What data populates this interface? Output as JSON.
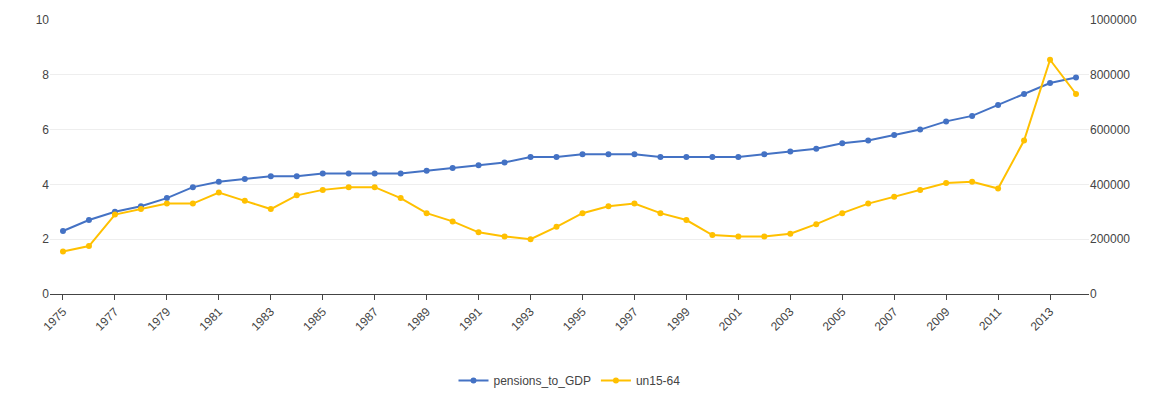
{
  "chart_data": {
    "type": "line",
    "x": [
      1975,
      1976,
      1977,
      1978,
      1979,
      1980,
      1981,
      1982,
      1983,
      1984,
      1985,
      1986,
      1987,
      1988,
      1989,
      1990,
      1991,
      1992,
      1993,
      1994,
      1995,
      1996,
      1997,
      1998,
      1999,
      2000,
      2001,
      2002,
      2003,
      2004,
      2005,
      2006,
      2007,
      2008,
      2009,
      2010,
      2011,
      2012,
      2013,
      2014
    ],
    "series": [
      {
        "name": "pensions_to_GDP",
        "color": "#4472C4",
        "marker": "circle",
        "values": [
          2.3,
          2.7,
          3.0,
          3.2,
          3.5,
          3.9,
          4.1,
          4.2,
          4.3,
          4.3,
          4.4,
          4.4,
          4.4,
          4.4,
          4.5,
          4.6,
          4.7,
          4.8,
          5.0,
          5.0,
          5.1,
          5.1,
          5.1,
          5.0,
          5.0,
          5.0,
          5.0,
          5.1,
          5.2,
          5.3,
          5.5,
          5.6,
          5.8,
          6.0,
          6.3,
          6.5,
          6.9,
          7.3,
          7.7,
          7.9
        ]
      },
      {
        "name": "un15-64",
        "color": "#FFC000",
        "marker": "circle",
        "axis": "y2",
        "values": [
          155000,
          175000,
          290000,
          310000,
          330000,
          330000,
          370000,
          340000,
          310000,
          360000,
          380000,
          390000,
          390000,
          350000,
          295000,
          265000,
          225000,
          210000,
          200000,
          245000,
          295000,
          320000,
          330000,
          295000,
          270000,
          215000,
          210000,
          210000,
          220000,
          255000,
          295000,
          330000,
          355000,
          380000,
          405000,
          410000,
          385000,
          560000,
          855000,
          730000
        ]
      }
    ],
    "xlim": [
      1974.5,
      2014.5
    ],
    "xticks": [
      1975,
      1977,
      1979,
      1981,
      1983,
      1985,
      1987,
      1989,
      1991,
      1993,
      1995,
      1997,
      1999,
      2001,
      2003,
      2005,
      2007,
      2009,
      2011,
      2013
    ],
    "ylim": [
      0,
      10
    ],
    "yticks": [
      0,
      2,
      4,
      6,
      8,
      10
    ],
    "y2lim": [
      0,
      1000000
    ],
    "y2ticks": [
      0,
      200000,
      400000,
      600000,
      800000,
      1000000
    ],
    "grid": true,
    "legend": "bottom"
  }
}
